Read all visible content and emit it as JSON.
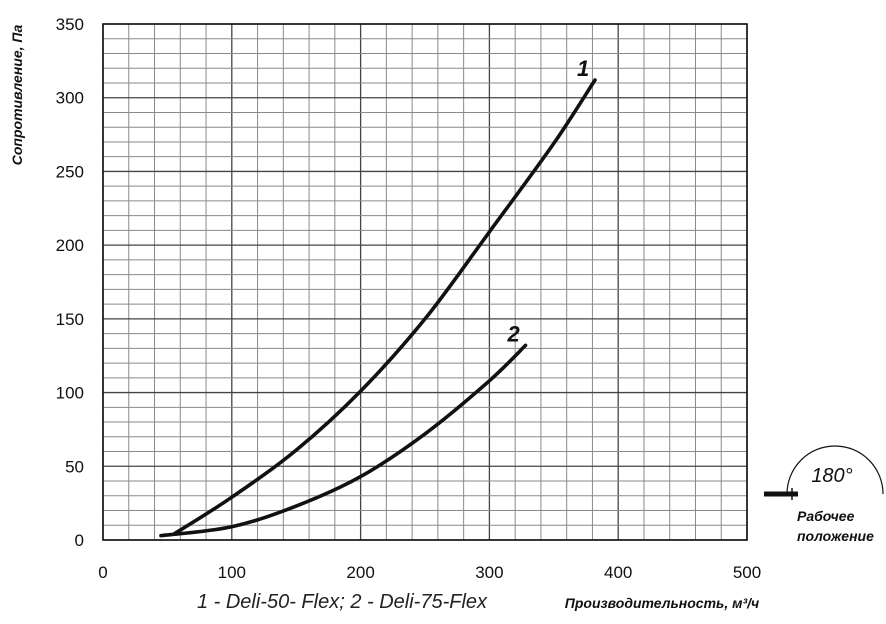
{
  "chart_data": {
    "type": "line",
    "xlabel": "Производительность, м³/ч",
    "ylabel": "Сопротивление, Па",
    "xlim": [
      0,
      500
    ],
    "ylim": [
      0,
      350
    ],
    "x_ticks": [
      "0",
      "100",
      "200",
      "300",
      "400",
      "500"
    ],
    "y_ticks": [
      "0",
      "50",
      "100",
      "150",
      "200",
      "250",
      "300",
      "350"
    ],
    "grid": true,
    "legend_text": "1 - Deli-50- Flex;  2 - Deli-75-Flex",
    "series": [
      {
        "name": "1",
        "points": [
          [
            55,
            4
          ],
          [
            100,
            29
          ],
          [
            150,
            61
          ],
          [
            200,
            101
          ],
          [
            250,
            150
          ],
          [
            300,
            209
          ],
          [
            350,
            269
          ],
          [
            382,
            312
          ]
        ]
      },
      {
        "name": "2",
        "points": [
          [
            45,
            3
          ],
          [
            100,
            9
          ],
          [
            150,
            23
          ],
          [
            200,
            43
          ],
          [
            250,
            72
          ],
          [
            300,
            108
          ],
          [
            328,
            132
          ]
        ]
      }
    ]
  },
  "inset": {
    "angle": "180°",
    "line1": "Рабочее",
    "line2": "положение"
  }
}
